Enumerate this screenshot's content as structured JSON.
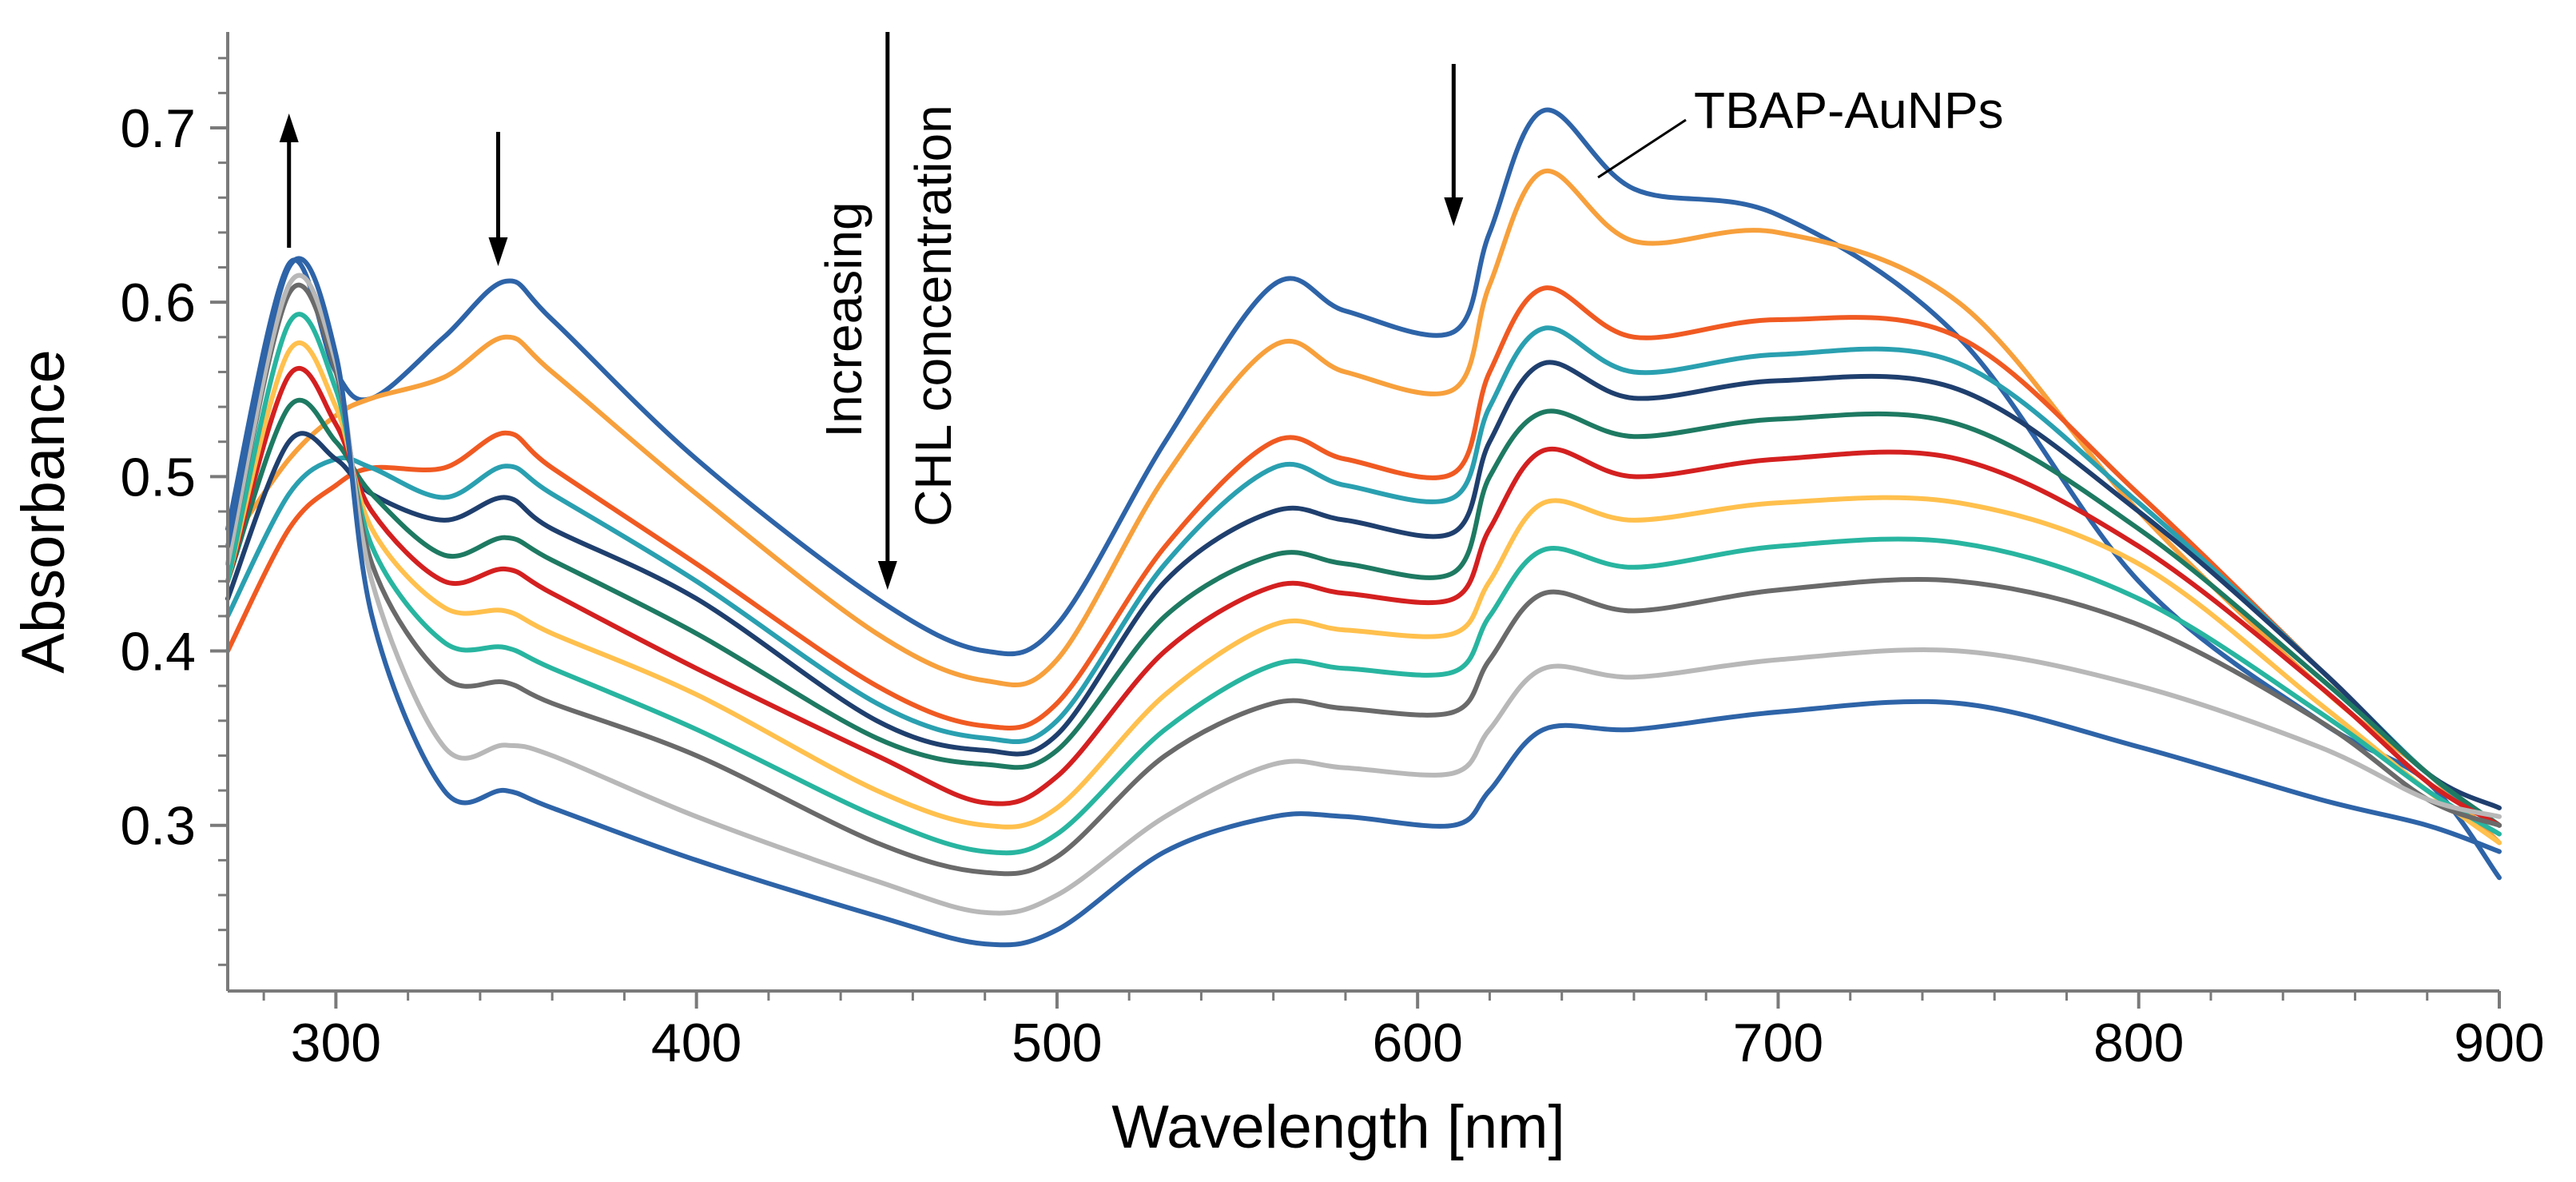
{
  "chart_data": {
    "type": "line",
    "title": "",
    "xlabel": "Wavelength [nm]",
    "ylabel": "Absorbance",
    "xlim": [
      270,
      900
    ],
    "ylim": [
      0.205,
      0.755
    ],
    "xticks": [
      300,
      400,
      500,
      600,
      700,
      800,
      900
    ],
    "xtick_labels": [
      "300",
      "400",
      "500",
      "600",
      "700",
      "800",
      "900"
    ],
    "yticks": [
      0.3,
      0.4,
      0.5,
      0.6,
      0.7
    ],
    "ytick_labels": [
      "0.3",
      "0.4",
      "0.5",
      "0.6",
      "0.7"
    ],
    "x": [
      270,
      287,
      300,
      310,
      330,
      347,
      360,
      400,
      450,
      480,
      500,
      530,
      560,
      580,
      610,
      620,
      635,
      660,
      700,
      750,
      800,
      850,
      880,
      900
    ],
    "series": [
      {
        "name": "TBAP-AuNPs",
        "color": "#2e64a8",
        "values": [
          0.47,
          0.622,
          0.56,
          0.545,
          0.58,
          0.612,
          0.59,
          0.51,
          0.43,
          0.4,
          0.415,
          0.52,
          0.61,
          0.595,
          0.583,
          0.64,
          0.71,
          0.665,
          0.65,
          0.58,
          0.44,
          0.36,
          0.325,
          0.27
        ]
      },
      {
        "name": "",
        "color": "#f7a03c",
        "values": [
          0.46,
          0.51,
          0.535,
          0.545,
          0.557,
          0.58,
          0.56,
          0.49,
          0.41,
          0.383,
          0.395,
          0.5,
          0.575,
          0.56,
          0.55,
          0.61,
          0.675,
          0.635,
          0.64,
          0.6,
          0.48,
          0.38,
          0.33,
          0.29
        ]
      },
      {
        "name": "",
        "color": "#f05a22",
        "values": [
          0.4,
          0.47,
          0.495,
          0.505,
          0.505,
          0.525,
          0.505,
          0.45,
          0.38,
          0.357,
          0.37,
          0.46,
          0.52,
          0.51,
          0.502,
          0.56,
          0.608,
          0.58,
          0.59,
          0.58,
          0.49,
          0.39,
          0.33,
          0.3
        ]
      },
      {
        "name": "",
        "color": "#2aa0b0",
        "values": [
          0.42,
          0.49,
          0.51,
          0.505,
          0.488,
          0.506,
          0.49,
          0.44,
          0.37,
          0.35,
          0.36,
          0.45,
          0.505,
          0.495,
          0.488,
          0.54,
          0.585,
          0.56,
          0.57,
          0.565,
          0.485,
          0.39,
          0.33,
          0.3
        ]
      },
      {
        "name": "",
        "color": "#1f3f6e",
        "values": [
          0.43,
          0.52,
          0.51,
          0.49,
          0.475,
          0.488,
          0.47,
          0.43,
          0.36,
          0.343,
          0.352,
          0.44,
          0.48,
          0.475,
          0.468,
          0.52,
          0.565,
          0.545,
          0.555,
          0.55,
          0.48,
          0.39,
          0.33,
          0.31
        ]
      },
      {
        "name": "",
        "color": "#1e7a62",
        "values": [
          0.44,
          0.54,
          0.52,
          0.49,
          0.455,
          0.465,
          0.452,
          0.41,
          0.35,
          0.335,
          0.343,
          0.42,
          0.455,
          0.45,
          0.445,
          0.5,
          0.537,
          0.523,
          0.533,
          0.53,
          0.47,
          0.385,
          0.33,
          0.3
        ]
      },
      {
        "name": "",
        "color": "#d42020",
        "values": [
          0.44,
          0.558,
          0.53,
          0.48,
          0.44,
          0.447,
          0.433,
          0.39,
          0.34,
          0.313,
          0.328,
          0.4,
          0.437,
          0.433,
          0.43,
          0.47,
          0.515,
          0.5,
          0.51,
          0.51,
          0.46,
          0.38,
          0.325,
          0.3
        ]
      },
      {
        "name": "",
        "color": "#ffc04d",
        "values": [
          0.44,
          0.572,
          0.54,
          0.47,
          0.425,
          0.423,
          0.41,
          0.375,
          0.32,
          0.3,
          0.31,
          0.375,
          0.415,
          0.412,
          0.41,
          0.44,
          0.485,
          0.475,
          0.485,
          0.485,
          0.45,
          0.37,
          0.32,
          0.29
        ]
      },
      {
        "name": "",
        "color": "#28b5a0",
        "values": [
          0.44,
          0.588,
          0.55,
          0.46,
          0.405,
          0.402,
          0.39,
          0.355,
          0.305,
          0.285,
          0.295,
          0.355,
          0.392,
          0.39,
          0.388,
          0.42,
          0.458,
          0.448,
          0.46,
          0.462,
          0.43,
          0.365,
          0.32,
          0.295
        ]
      },
      {
        "name": "",
        "color": "#6a6a6a",
        "values": [
          0.45,
          0.605,
          0.56,
          0.45,
          0.385,
          0.382,
          0.37,
          0.34,
          0.29,
          0.273,
          0.282,
          0.34,
          0.37,
          0.367,
          0.365,
          0.395,
          0.433,
          0.423,
          0.435,
          0.44,
          0.415,
          0.36,
          0.315,
          0.3
        ]
      },
      {
        "name": "",
        "color": "#b8b8b8",
        "values": [
          0.45,
          0.61,
          0.565,
          0.44,
          0.345,
          0.346,
          0.34,
          0.305,
          0.268,
          0.25,
          0.26,
          0.305,
          0.335,
          0.333,
          0.33,
          0.355,
          0.39,
          0.385,
          0.395,
          0.4,
          0.38,
          0.345,
          0.315,
          0.305
        ]
      },
      {
        "name": "",
        "color": "#2e64a8",
        "values": [
          0.46,
          0.62,
          0.57,
          0.42,
          0.32,
          0.32,
          0.31,
          0.28,
          0.248,
          0.232,
          0.24,
          0.285,
          0.305,
          0.305,
          0.3,
          0.32,
          0.355,
          0.355,
          0.365,
          0.37,
          0.345,
          0.315,
          0.3,
          0.285
        ]
      }
    ],
    "annotations": [
      {
        "text": "TBAP-AuNPs",
        "type": "label"
      },
      {
        "text": "Increasing",
        "type": "rotated-text"
      },
      {
        "text": "CHL concentration",
        "type": "rotated-text"
      },
      {
        "direction": "up",
        "type": "arrow",
        "x": 287
      },
      {
        "direction": "down",
        "type": "arrow",
        "x": 345
      },
      {
        "direction": "down",
        "type": "arrow",
        "x": 610
      },
      {
        "direction": "down",
        "type": "arrow",
        "x": 453
      }
    ],
    "grid": false,
    "legend": "none"
  }
}
